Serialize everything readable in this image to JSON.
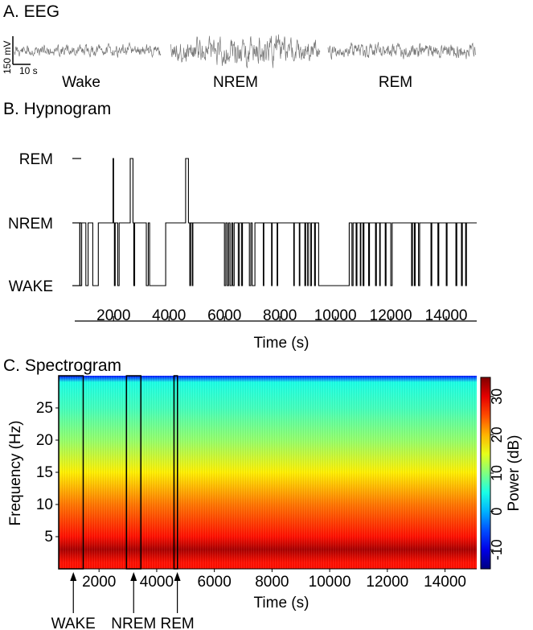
{
  "eeg": {
    "panel_title": "A. EEG",
    "scale_amplitude_label": "150 mV",
    "scale_time_label": "10 s",
    "segments": [
      {
        "label": "Wake",
        "amplitude": 0.35
      },
      {
        "label": "NREM",
        "amplitude": 0.85
      },
      {
        "label": "REM",
        "amplitude": 0.45
      }
    ]
  },
  "chart_data": [
    {
      "type": "line",
      "subtype": "step",
      "title": "B. Hypnogram",
      "xlabel": "Time (s)",
      "ylabel": "",
      "xlim": [
        600,
        15100
      ],
      "xticks": [
        2000,
        4000,
        6000,
        8000,
        10000,
        12000,
        14000
      ],
      "yticks": [
        {
          "value": 0,
          "label": "WAKE"
        },
        {
          "value": 1,
          "label": "NREM"
        },
        {
          "value": 2,
          "label": "REM"
        }
      ],
      "ylim": [
        0,
        2
      ],
      "stages": [
        [
          600,
          0
        ],
        [
          780,
          1
        ],
        [
          790,
          0
        ],
        [
          850,
          1
        ],
        [
          1000,
          0
        ],
        [
          1080,
          1
        ],
        [
          1250,
          0
        ],
        [
          1450,
          1
        ],
        [
          1980,
          2
        ],
        [
          2000,
          1
        ],
        [
          2030,
          0
        ],
        [
          2060,
          1
        ],
        [
          2150,
          0
        ],
        [
          2200,
          1
        ],
        [
          2600,
          2
        ],
        [
          2700,
          1
        ],
        [
          2730,
          0
        ],
        [
          2760,
          1
        ],
        [
          3180,
          0
        ],
        [
          3250,
          1
        ],
        [
          3300,
          0
        ],
        [
          3880,
          1
        ],
        [
          4600,
          2
        ],
        [
          4700,
          1
        ],
        [
          4750,
          0
        ],
        [
          4780,
          1
        ],
        [
          4840,
          0
        ],
        [
          4860,
          1
        ],
        [
          6000,
          0
        ],
        [
          6050,
          1
        ],
        [
          6100,
          0
        ],
        [
          6150,
          1
        ],
        [
          6200,
          0
        ],
        [
          6260,
          1
        ],
        [
          6300,
          0
        ],
        [
          6350,
          1
        ],
        [
          6500,
          0
        ],
        [
          6540,
          1
        ],
        [
          6620,
          0
        ],
        [
          6650,
          1
        ],
        [
          6900,
          0
        ],
        [
          6950,
          1
        ],
        [
          7000,
          0
        ],
        [
          7100,
          1
        ],
        [
          7400,
          0
        ],
        [
          7420,
          1
        ],
        [
          7700,
          0
        ],
        [
          7720,
          1
        ],
        [
          7900,
          0
        ],
        [
          7920,
          1
        ],
        [
          8500,
          0
        ],
        [
          8520,
          1
        ],
        [
          8700,
          0
        ],
        [
          8720,
          1
        ],
        [
          8900,
          0
        ],
        [
          8930,
          1
        ],
        [
          9000,
          0
        ],
        [
          9020,
          1
        ],
        [
          9100,
          0
        ],
        [
          9140,
          1
        ],
        [
          9250,
          0
        ],
        [
          9280,
          1
        ],
        [
          9400,
          0
        ],
        [
          10500,
          1
        ],
        [
          10600,
          0
        ],
        [
          10640,
          1
        ],
        [
          10750,
          0
        ],
        [
          10780,
          1
        ],
        [
          10900,
          0
        ],
        [
          10920,
          1
        ],
        [
          11000,
          0
        ],
        [
          11030,
          1
        ],
        [
          11200,
          0
        ],
        [
          11230,
          1
        ],
        [
          11450,
          0
        ],
        [
          11480,
          1
        ],
        [
          11600,
          0
        ],
        [
          11620,
          1
        ],
        [
          11800,
          0
        ],
        [
          11830,
          1
        ],
        [
          12000,
          0
        ],
        [
          12050,
          1
        ],
        [
          12750,
          0
        ],
        [
          12780,
          1
        ],
        [
          12850,
          0
        ],
        [
          12880,
          1
        ],
        [
          13000,
          0
        ],
        [
          13040,
          1
        ],
        [
          13450,
          0
        ],
        [
          13480,
          1
        ],
        [
          13700,
          0
        ],
        [
          13730,
          1
        ],
        [
          14000,
          0
        ],
        [
          14030,
          1
        ],
        [
          14350,
          0
        ],
        [
          14380,
          1
        ],
        [
          14550,
          0
        ],
        [
          14580,
          1
        ],
        [
          14700,
          0
        ],
        [
          14730,
          1
        ],
        [
          15100,
          1
        ]
      ]
    },
    {
      "type": "heatmap",
      "title": "C. Spectrogram",
      "xlabel": "Time (s)",
      "ylabel": "Frequency (Hz)",
      "xlim": [
        600,
        15100
      ],
      "ylim": [
        0,
        30
      ],
      "xticks": [
        2000,
        4000,
        6000,
        8000,
        10000,
        12000,
        14000
      ],
      "yticks": [
        5,
        10,
        15,
        20,
        25
      ],
      "colorbar": {
        "label": "Power (dB)",
        "min": -15,
        "max": 35,
        "ticks": [
          -10,
          0,
          10,
          20,
          30
        ]
      },
      "highlighted_windows": [
        {
          "label": "WAKE",
          "start": 600,
          "end": 1450
        },
        {
          "label": "NREM",
          "start": 2950,
          "end": 3450
        },
        {
          "label": "REM",
          "start": 4600,
          "end": 4720
        }
      ],
      "power_profile_db": [
        {
          "freq": 1,
          "power": 28
        },
        {
          "freq": 3,
          "power": 33
        },
        {
          "freq": 5,
          "power": 28
        },
        {
          "freq": 8,
          "power": 25
        },
        {
          "freq": 10,
          "power": 23
        },
        {
          "freq": 15,
          "power": 17
        },
        {
          "freq": 20,
          "power": 11
        },
        {
          "freq": 25,
          "power": 7
        },
        {
          "freq": 29,
          "power": 5
        },
        {
          "freq": 30,
          "power": -8
        }
      ]
    }
  ]
}
